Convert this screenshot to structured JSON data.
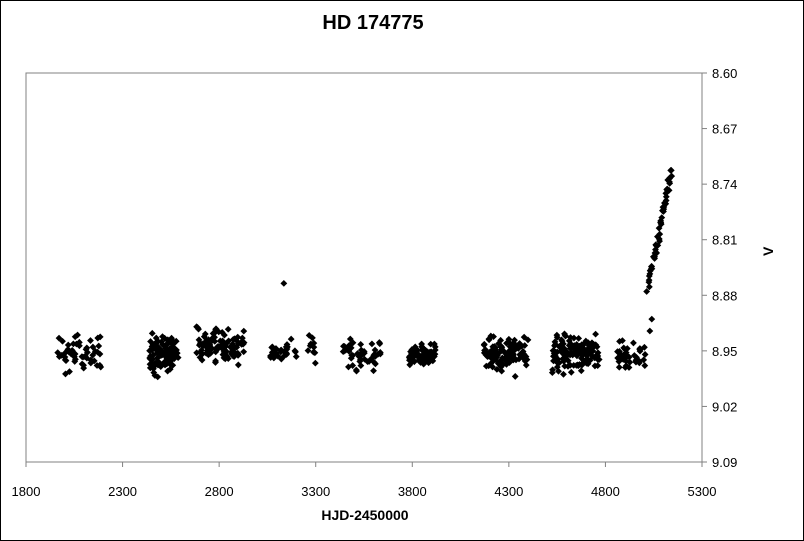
{
  "chart_data": {
    "type": "scatter",
    "title": "HD 174775",
    "xlabel": "HJD-2450000",
    "ylabel": "V",
    "xlim": [
      1800,
      5300
    ],
    "ylim": [
      8.6,
      9.09
    ],
    "y_reversed": true,
    "y_axis_side": "right",
    "grid": false,
    "legend": "none",
    "x_ticks": [
      "1800",
      "2300",
      "2800",
      "3300",
      "3800",
      "4300",
      "4800",
      "5300"
    ],
    "y_ticks": [
      "8.60",
      "8.67",
      "8.74",
      "8.81",
      "8.88",
      "8.95",
      "9.02",
      "9.09"
    ],
    "marker": "diamond",
    "marker_color": "#000000",
    "clusters": [
      {
        "x_start": 1960,
        "x_end": 2190,
        "y_min": 8.92,
        "y_max": 8.985,
        "count": 55
      },
      {
        "x_start": 2440,
        "x_end": 2590,
        "y_min": 8.92,
        "y_max": 8.985,
        "count": 110
      },
      {
        "x_start": 2680,
        "x_end": 2930,
        "y_min": 8.915,
        "y_max": 8.975,
        "count": 115
      },
      {
        "x_start": 3060,
        "x_end": 3200,
        "y_min": 8.93,
        "y_max": 8.972,
        "count": 30
      },
      {
        "x_start": 3260,
        "x_end": 3300,
        "y_min": 8.925,
        "y_max": 8.97,
        "count": 10
      },
      {
        "x_start": 3440,
        "x_end": 3640,
        "y_min": 8.925,
        "y_max": 8.982,
        "count": 50
      },
      {
        "x_start": 3780,
        "x_end": 3920,
        "y_min": 8.935,
        "y_max": 8.975,
        "count": 70
      },
      {
        "x_start": 4170,
        "x_end": 4400,
        "y_min": 8.922,
        "y_max": 8.985,
        "count": 110
      },
      {
        "x_start": 4520,
        "x_end": 4770,
        "y_min": 8.92,
        "y_max": 8.985,
        "count": 140
      },
      {
        "x_start": 4860,
        "x_end": 5010,
        "y_min": 8.935,
        "y_max": 8.98,
        "count": 40
      }
    ],
    "extra_points": [
      {
        "x": 3135,
        "y": 8.865
      },
      {
        "x": 5040,
        "y": 8.91
      },
      {
        "x": 5030,
        "y": 8.925
      },
      {
        "x": 4945,
        "y": 8.94
      }
    ],
    "rise": {
      "x_start": 5020,
      "x_end": 5145,
      "y_start": 8.87,
      "y_end": 8.72,
      "count": 55
    }
  }
}
